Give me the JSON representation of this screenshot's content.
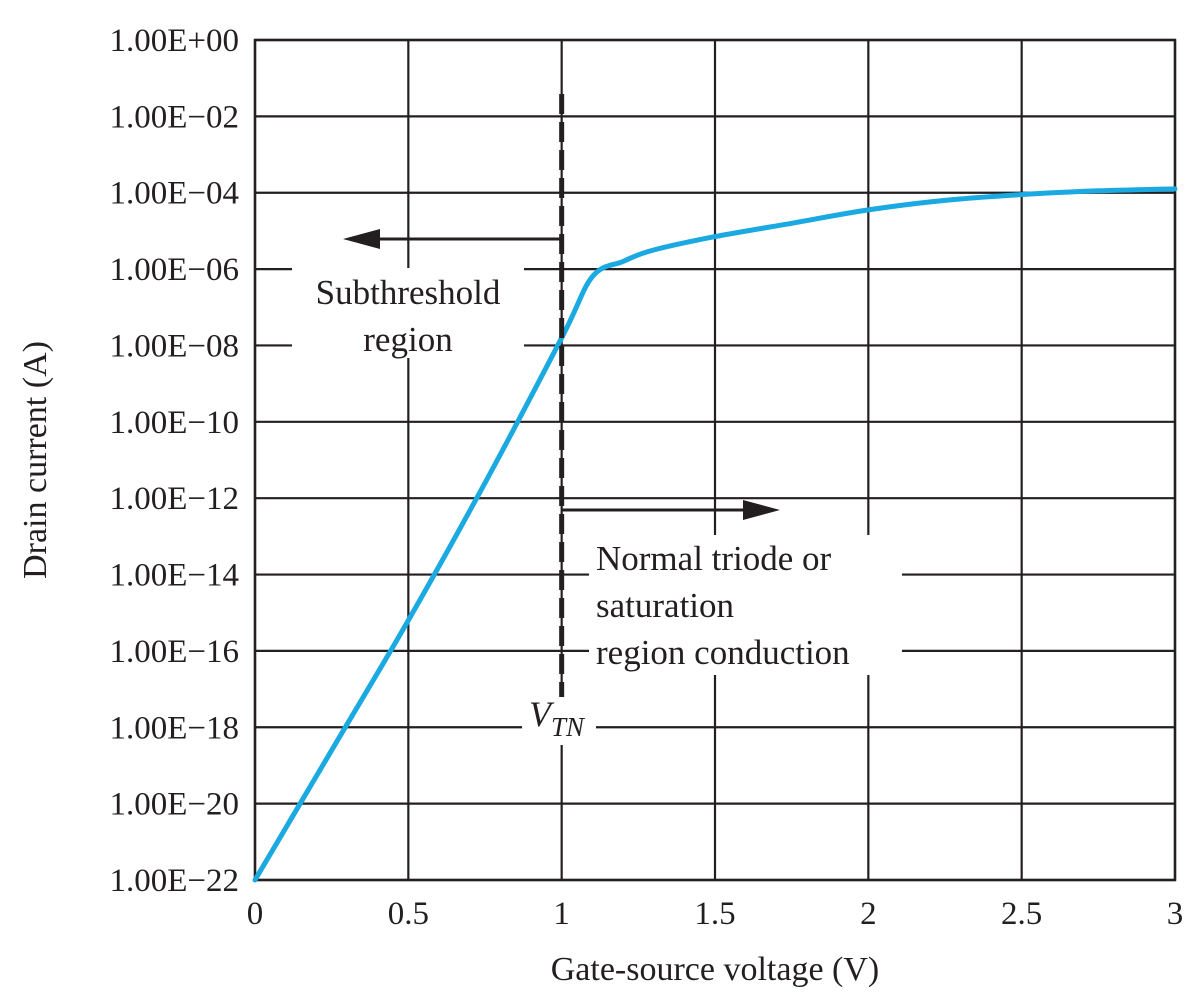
{
  "chart_data": {
    "type": "line",
    "title": "",
    "xlabel": "Gate-source voltage (V)",
    "ylabel": "Drain current (A)",
    "xlim": [
      0,
      3
    ],
    "ylim_log10": [
      -22,
      0
    ],
    "yscale": "log",
    "grid": true,
    "x_ticks": [
      0,
      0.5,
      1,
      1.5,
      2,
      2.5,
      3
    ],
    "x_tick_labels": [
      "0",
      "0.5",
      "1",
      "1.5",
      "2",
      "2.5",
      "3"
    ],
    "y_ticks_log10": [
      0,
      -2,
      -4,
      -6,
      -8,
      -10,
      -12,
      -14,
      -16,
      -18,
      -20,
      -22
    ],
    "y_tick_labels": [
      "1.00E+00",
      "1.00E−02",
      "1.00E−04",
      "1.00E−06",
      "1.00E−08",
      "1.00E−10",
      "1.00E−12",
      "1.00E−14",
      "1.00E−16",
      "1.00E−18",
      "1.00E−20",
      "1.00E−22"
    ],
    "series": [
      {
        "color": "#1ba9e1",
        "x": [
          0,
          0.25,
          0.5,
          0.75,
          1.0,
          1.1,
          1.2,
          1.3,
          1.5,
          1.75,
          2.0,
          2.25,
          2.5,
          2.75,
          3.0
        ],
        "y_log10": [
          -22,
          -18.6,
          -15.2,
          -11.6,
          -7.8,
          -6.2,
          -5.8,
          -5.5,
          -5.15,
          -4.8,
          -4.45,
          -4.2,
          -4.05,
          -3.95,
          -3.9
        ]
      }
    ],
    "threshold_line": {
      "x": 1.0,
      "label_main": "V",
      "label_sub": "TN"
    },
    "annotations": {
      "subthreshold": [
        "Subthreshold",
        "region"
      ],
      "conduction": [
        "Normal triode or",
        "saturation",
        "region conduction"
      ]
    }
  },
  "colors": {
    "curve": "#1ba9e1",
    "grid": "#231f20",
    "text": "#231f20"
  }
}
